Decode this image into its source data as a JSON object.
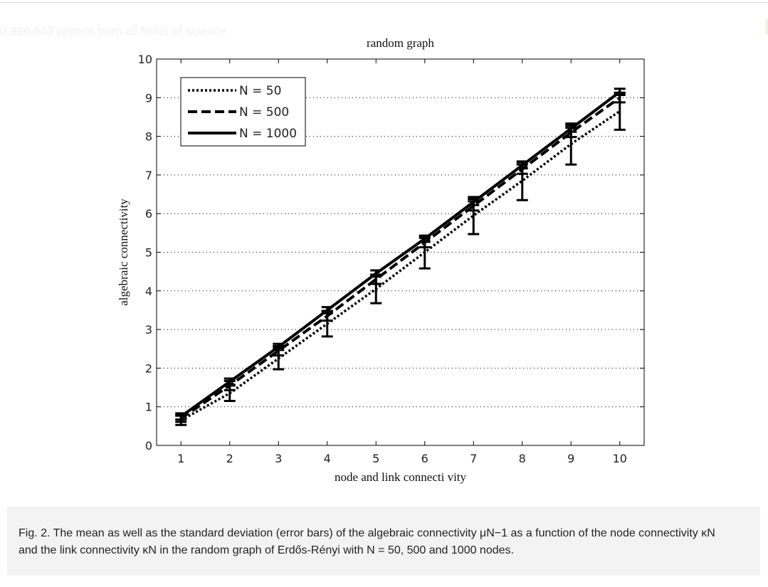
{
  "page": {
    "ghost_text": "0,996,643 papers from all fields of science"
  },
  "chart_data": {
    "type": "line",
    "title": "random graph",
    "xlabel": "node and link connecti vity",
    "ylabel": "algebraic connectivity",
    "xlim": [
      0.5,
      10.5
    ],
    "ylim": [
      0,
      10
    ],
    "x": [
      1,
      2,
      3,
      4,
      5,
      6,
      7,
      8,
      9,
      10
    ],
    "xticks": [
      "1",
      "2",
      "3",
      "4",
      "5",
      "6",
      "7",
      "8",
      "9",
      "10"
    ],
    "yticks": [
      "0",
      "1",
      "2",
      "3",
      "4",
      "5",
      "6",
      "7",
      "8",
      "9",
      "10"
    ],
    "grid": true,
    "legend_position": "top-left",
    "series": [
      {
        "name": "N = 50",
        "style": "dotted",
        "values": [
          0.65,
          1.35,
          2.25,
          3.15,
          4.05,
          5.0,
          5.95,
          6.85,
          7.8,
          8.65
        ],
        "errors": [
          0.12,
          0.2,
          0.28,
          0.33,
          0.37,
          0.42,
          0.48,
          0.5,
          0.53,
          0.48
        ]
      },
      {
        "name": "N = 500",
        "style": "dashed",
        "values": [
          0.7,
          1.55,
          2.45,
          3.35,
          4.3,
          5.25,
          6.2,
          7.15,
          8.1,
          9.0
        ],
        "errors": [
          0.09,
          0.12,
          0.12,
          0.12,
          0.12,
          0.12,
          0.12,
          0.12,
          0.12,
          0.12
        ]
      },
      {
        "name": "N = 1000",
        "style": "solid",
        "values": [
          0.75,
          1.65,
          2.55,
          3.5,
          4.45,
          5.35,
          6.3,
          7.25,
          8.2,
          9.15
        ],
        "errors": [
          0.08,
          0.08,
          0.08,
          0.08,
          0.08,
          0.08,
          0.08,
          0.08,
          0.08,
          0.08
        ]
      }
    ]
  },
  "caption": {
    "text": "Fig. 2. The mean as well as the standard deviation (error bars) of the algebraic connectivity μN−1 as a function of the node connectivity κN and the link connectivity κN in the random graph of Erdős-Rényi with N = 50, 500 and 1000 nodes."
  }
}
